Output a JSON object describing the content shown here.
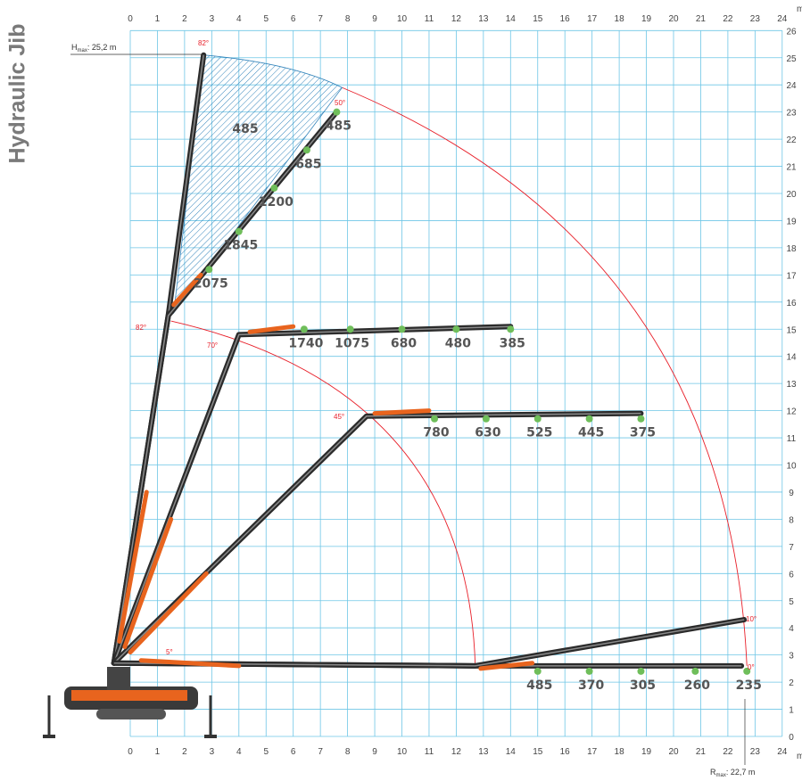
{
  "title": "Hydraulic Jib",
  "axis": {
    "x_ticks": [
      "0",
      "1",
      "2",
      "3",
      "4",
      "5",
      "6",
      "7",
      "8",
      "9",
      "10",
      "11",
      "12",
      "13",
      "14",
      "15",
      "16",
      "17",
      "18",
      "19",
      "20",
      "21",
      "22",
      "23",
      "24"
    ],
    "y_ticks": [
      "0",
      "1",
      "2",
      "3",
      "4",
      "5",
      "6",
      "7",
      "8",
      "9",
      "10",
      "11",
      "12",
      "13",
      "14",
      "15",
      "16",
      "17",
      "18",
      "19",
      "20",
      "21",
      "22",
      "23",
      "24",
      "25",
      "26"
    ],
    "unit": "m"
  },
  "h_max": {
    "prefix": "H",
    "sub": "max",
    "value": ": 25,2 m"
  },
  "r_max": {
    "prefix": "R",
    "sub": "max",
    "value": ": 22,7 m"
  },
  "angles": [
    "82°",
    "50°",
    "82°",
    "70°",
    "45°",
    "5°",
    "10°",
    "0°"
  ],
  "colors": {
    "grid": "#6ec6e6",
    "arc": "#e8202a",
    "boom": "#2b2b2b",
    "accent": "#e8641e",
    "point": "#6fbe5a",
    "hatch": "#1f78b4"
  },
  "chart_data": {
    "type": "diagram",
    "hatched_area_load": "485",
    "configs": [
      {
        "angle": "82°/50°",
        "points": [
          {
            "x": 2.9,
            "y": 17.2,
            "load": "2075"
          },
          {
            "x": 4.0,
            "y": 18.6,
            "load": "1845"
          },
          {
            "x": 5.3,
            "y": 20.2,
            "load": "1200"
          },
          {
            "x": 6.5,
            "y": 21.6,
            "load": "685"
          },
          {
            "x": 7.6,
            "y": 23.0,
            "load": "485"
          }
        ]
      },
      {
        "angle": "70°",
        "points": [
          {
            "x": 6.4,
            "y": 15.0,
            "load": "1740"
          },
          {
            "x": 8.1,
            "y": 15.0,
            "load": "1075"
          },
          {
            "x": 10.0,
            "y": 15.0,
            "load": "680"
          },
          {
            "x": 12.0,
            "y": 15.0,
            "load": "480"
          },
          {
            "x": 14.0,
            "y": 15.0,
            "load": "385"
          }
        ]
      },
      {
        "angle": "45°",
        "points": [
          {
            "x": 11.2,
            "y": 11.7,
            "load": "780"
          },
          {
            "x": 13.1,
            "y": 11.7,
            "load": "630"
          },
          {
            "x": 15.0,
            "y": 11.7,
            "load": "525"
          },
          {
            "x": 16.9,
            "y": 11.7,
            "load": "445"
          },
          {
            "x": 18.8,
            "y": 11.7,
            "load": "375"
          }
        ]
      },
      {
        "angle": "0°",
        "points": [
          {
            "x": 15.0,
            "y": 2.4,
            "load": "485"
          },
          {
            "x": 16.9,
            "y": 2.4,
            "load": "370"
          },
          {
            "x": 18.8,
            "y": 2.4,
            "load": "305"
          },
          {
            "x": 20.8,
            "y": 2.4,
            "load": "260"
          },
          {
            "x": 22.7,
            "y": 2.4,
            "load": "235"
          }
        ]
      }
    ]
  }
}
